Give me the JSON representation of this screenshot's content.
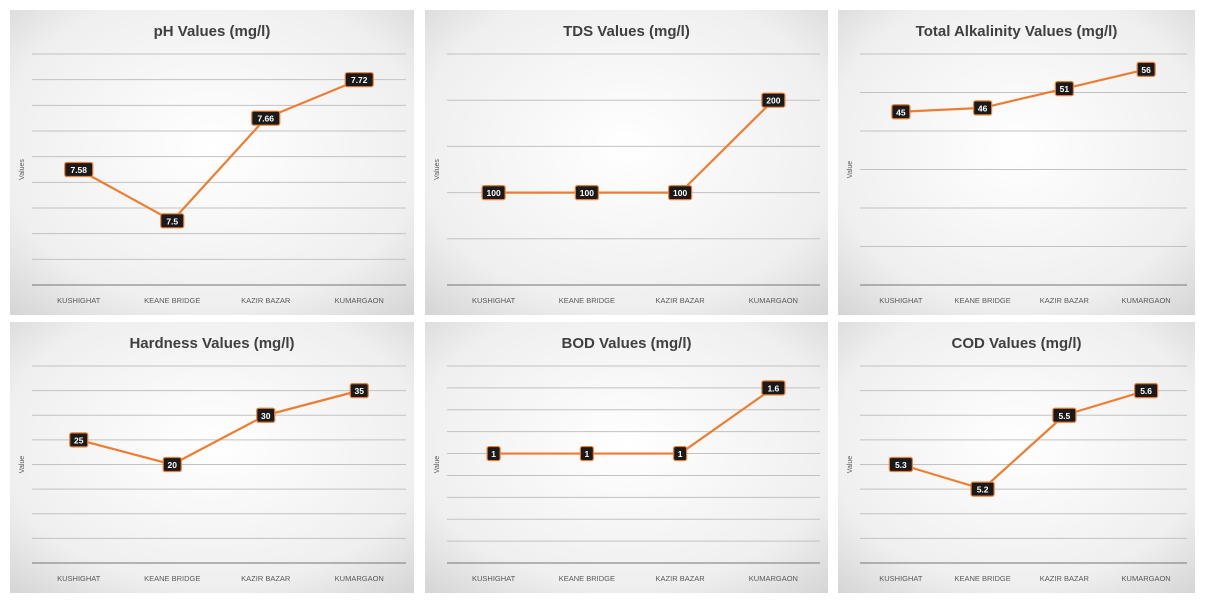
{
  "chart_data": [
    {
      "type": "line",
      "title": "pH Values (mg/l)",
      "ylabel": "Values",
      "xlabel": "",
      "categories": [
        "KUSHIGHAT",
        "KEANE BRIDGE",
        "KAZIR BAZAR",
        "KUMARGAON"
      ],
      "series": [
        {
          "values": [
            7.58,
            7.5,
            7.66,
            7.72
          ]
        }
      ],
      "data_labels": [
        "7.58",
        "7.5",
        "7.66",
        "7.72"
      ],
      "ylim": [
        7.4,
        7.76
      ],
      "gridlines": 9,
      "grid": true,
      "line_color": "#ed7d31"
    },
    {
      "type": "line",
      "title": "TDS Values (mg/l)",
      "ylabel": "Values",
      "xlabel": "",
      "categories": [
        "KUSHIGHAT",
        "KEANE BRIDGE",
        "KAZIR BAZAR",
        "KUMARGAON"
      ],
      "series": [
        {
          "values": [
            100,
            100,
            100,
            200
          ]
        }
      ],
      "data_labels": [
        "100",
        "100",
        "100",
        "200"
      ],
      "ylim": [
        0,
        250
      ],
      "gridlines": 5,
      "grid": true,
      "line_color": "#ed7d31"
    },
    {
      "type": "line",
      "title": "Total Alkalinity Values (mg/l)",
      "ylabel": "Value",
      "xlabel": "",
      "categories": [
        "KUSHIGHAT",
        "KEANE BRIDGE",
        "KAZIR BAZAR",
        "KUMARGAON"
      ],
      "series": [
        {
          "values": [
            45,
            46,
            51,
            56
          ]
        }
      ],
      "data_labels": [
        "45",
        "46",
        "51",
        "56"
      ],
      "ylim": [
        0,
        60
      ],
      "gridlines": 6,
      "grid": true,
      "line_color": "#ed7d31"
    },
    {
      "type": "line",
      "title": "Hardness Values (mg/l)",
      "ylabel": "Value",
      "xlabel": "",
      "categories": [
        "KUSHIGHAT",
        "KEANE BRIDGE",
        "KAZIR BAZAR",
        "KUMARGAON"
      ],
      "series": [
        {
          "values": [
            25,
            20,
            30,
            35
          ]
        }
      ],
      "data_labels": [
        "25",
        "20",
        "30",
        "35"
      ],
      "ylim": [
        0,
        40
      ],
      "gridlines": 8,
      "grid": true,
      "line_color": "#ed7d31"
    },
    {
      "type": "line",
      "title": "BOD Values (mg/l)",
      "ylabel": "Value",
      "xlabel": "",
      "categories": [
        "KUSHIGHAT",
        "KEANE BRIDGE",
        "KAZIR BAZAR",
        "KUMARGAON"
      ],
      "series": [
        {
          "values": [
            1,
            1,
            1,
            1.6
          ]
        }
      ],
      "data_labels": [
        "1",
        "1",
        "1",
        "1.6"
      ],
      "ylim": [
        0,
        1.8
      ],
      "gridlines": 9,
      "grid": true,
      "line_color": "#ed7d31"
    },
    {
      "type": "line",
      "title": "COD Values (mg/l)",
      "ylabel": "Value",
      "xlabel": "",
      "categories": [
        "KUSHIGHAT",
        "KEANE BRIDGE",
        "KAZIR BAZAR",
        "KUMARGAON"
      ],
      "series": [
        {
          "values": [
            5.3,
            5.2,
            5.5,
            5.6
          ]
        }
      ],
      "data_labels": [
        "5.3",
        "5.2",
        "5.5",
        "5.6"
      ],
      "ylim": [
        4.9,
        5.7
      ],
      "gridlines": 8,
      "grid": true,
      "line_color": "#ed7d31"
    }
  ]
}
